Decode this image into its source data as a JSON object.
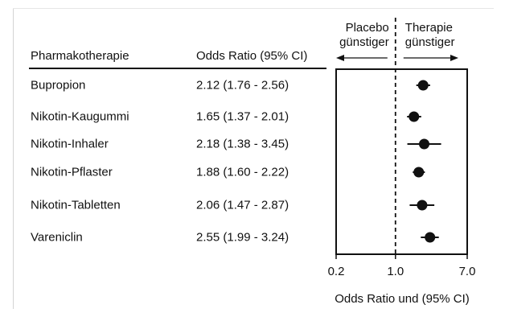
{
  "table": {
    "col1_header": "Pharmakotherapie",
    "col2_header": "Odds Ratio (95% CI)"
  },
  "chart_data": {
    "type": "forest",
    "xlabel": "Odds Ratio und (95% CI)",
    "xscale": "log",
    "xlim": [
      0.2,
      7.0
    ],
    "xticks": [
      "0.2",
      "1.0",
      "7.0"
    ],
    "reference_line": 1.0,
    "left_annotation": [
      "Placebo",
      "günstiger"
    ],
    "right_annotation": [
      "Therapie",
      "günstiger"
    ],
    "rows": [
      {
        "name": "Bupropion",
        "or": 2.12,
        "lo": 1.76,
        "hi": 2.56,
        "text": "2.12 (1.76 - 2.56)"
      },
      {
        "name": "Nikotin-Kaugummi",
        "or": 1.65,
        "lo": 1.37,
        "hi": 2.01,
        "text": "1.65 (1.37 - 2.01)"
      },
      {
        "name": "Nikotin-Inhaler",
        "or": 2.18,
        "lo": 1.38,
        "hi": 3.45,
        "text": "2.18 (1.38 - 3.45)"
      },
      {
        "name": "Nikotin-Pflaster",
        "or": 1.88,
        "lo": 1.6,
        "hi": 2.22,
        "text": "1.88 (1.60 - 2.22)"
      },
      {
        "name": "Nikotin-Tabletten",
        "or": 2.06,
        "lo": 1.47,
        "hi": 2.87,
        "text": "2.06 (1.47 - 2.87)"
      },
      {
        "name": "Vareniclin",
        "or": 2.55,
        "lo": 1.99,
        "hi": 3.24,
        "text": "2.55 (1.99 - 3.24)"
      }
    ]
  }
}
